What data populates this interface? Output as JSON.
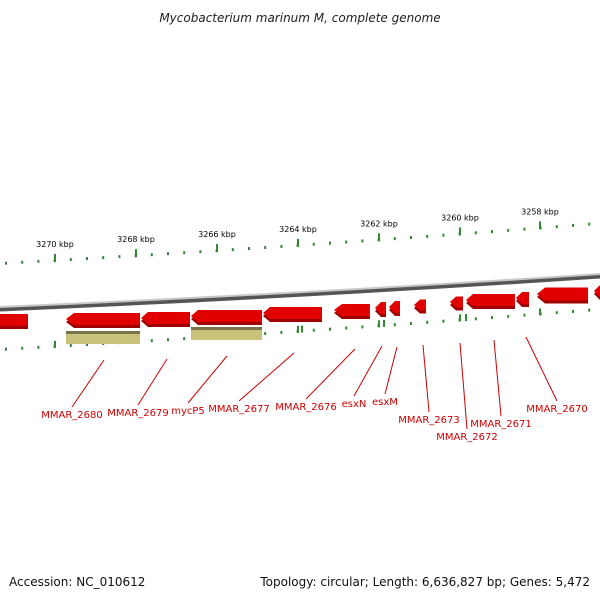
{
  "title": "Mycobacterium marinum M, complete genome",
  "footer": {
    "accession": "Accession: NC_010612",
    "summary": "Topology: circular; Length: 6,636,827 bp; Genes: 5,472"
  },
  "colors": {
    "backbone": "#8a8a8a",
    "gene": "#e10000",
    "gene_dark": "#a00000",
    "rna": "#c8c27a",
    "rna_dark": "#7a744a",
    "tick": "#2f8a2f",
    "label": "#cc0000"
  },
  "scale_ticks": [
    {
      "label": "3270 kbp"
    },
    {
      "label": "3268 kbp"
    },
    {
      "label": "3266 kbp"
    },
    {
      "label": "3264 kbp"
    },
    {
      "label": "3262 kbp"
    },
    {
      "label": "3260 kbp"
    },
    {
      "label": "3258 kbp"
    }
  ],
  "gene_labels": [
    {
      "text": "MMAR_2680"
    },
    {
      "text": "MMAR_2679"
    },
    {
      "text": "mycP5"
    },
    {
      "text": "MMAR_2677"
    },
    {
      "text": "MMAR_2676"
    },
    {
      "text": "esxN"
    },
    {
      "text": "esxM"
    },
    {
      "text": "MMAR_2673"
    },
    {
      "text": "MMAR_2672"
    },
    {
      "text": "MMAR_2671"
    },
    {
      "text": "MMAR_2670"
    }
  ]
}
